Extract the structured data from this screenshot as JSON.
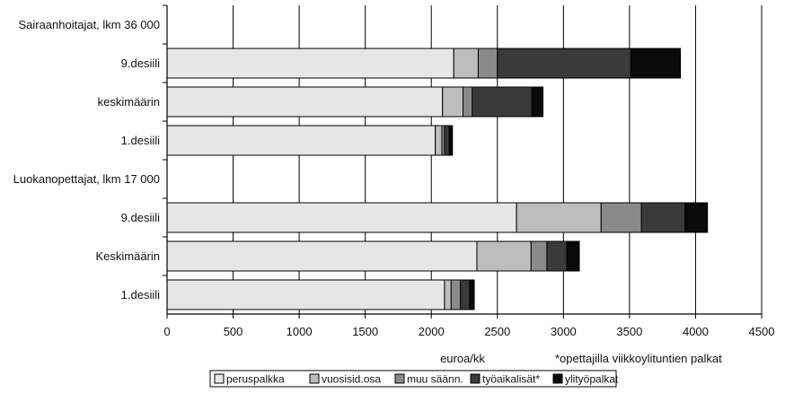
{
  "chart_data": {
    "type": "bar",
    "orientation": "horizontal",
    "stacked": true,
    "categories": [
      "Sairaanhoitajat, lkm 36 000",
      "9.desiili",
      "keskimäärin",
      "1.desiili",
      "Luokanopettajat, lkm 17 000",
      "9.desiili",
      "Keskimäärin",
      "1.desiili"
    ],
    "series": [
      {
        "name": "peruspalkka",
        "color": "#e6e6e6",
        "values": [
          null,
          2170,
          2085,
          2030,
          null,
          2645,
          2345,
          2100
        ]
      },
      {
        "name": "vuosisid.osa",
        "color": "#bdbdbd",
        "values": [
          null,
          185,
          155,
          50,
          null,
          640,
          410,
          50
        ]
      },
      {
        "name": "muu säänn.",
        "color": "#8a8a8a",
        "values": [
          null,
          145,
          70,
          20,
          null,
          305,
          120,
          70
        ]
      },
      {
        "name": "työaikalisät*",
        "color": "#3a3a3a",
        "values": [
          null,
          1010,
          450,
          35,
          null,
          330,
          150,
          70
        ]
      },
      {
        "name": "ylityöpalkat",
        "color": "#0a0a0a",
        "values": [
          null,
          375,
          85,
          25,
          null,
          170,
          95,
          35
        ]
      }
    ],
    "x_ticks": [
      "0",
      "500",
      "1000",
      "1500",
      "2000",
      "2500",
      "3000",
      "3500",
      "4000",
      "4500"
    ],
    "xlim": [
      0,
      4500
    ],
    "xlabel": "euroa/kk",
    "ylabel": "",
    "title": "",
    "note": "*opettajilla viikkoylituntien palkat",
    "grid": "vertical",
    "legend_position": "bottom"
  }
}
